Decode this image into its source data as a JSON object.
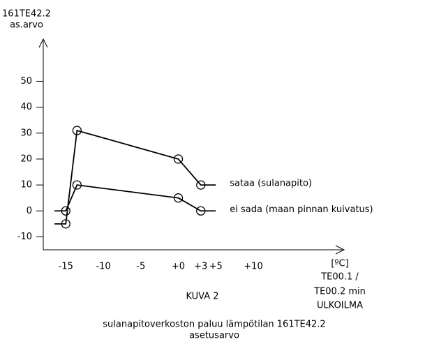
{
  "chart_data": {
    "type": "line",
    "y_label": [
      "161TE42.2",
      "as.arvo"
    ],
    "x_label": [
      "[ºC]",
      "TE00.1 /",
      "TE00.2 min",
      "ULKOILMA"
    ],
    "caption": "KUVA 2",
    "subcaption": [
      "sulanapitoverkoston paluu lämpötilan 161TE42.2",
      "asetusarvo"
    ],
    "x": [
      -16.5,
      -15,
      -13.5,
      0,
      3,
      5
    ],
    "series": [
      {
        "name": "sataa (sulanapito)",
        "color": "#000000",
        "values": [
          -5,
          -5,
          31,
          20,
          10,
          10
        ]
      },
      {
        "name": "ei sada (maan pinnan kuivatus)",
        "color": "#000000",
        "values": [
          0,
          0,
          10,
          5,
          0,
          0
        ]
      }
    ],
    "xlim": [
      -18,
      22
    ],
    "ylim": [
      -15,
      66
    ],
    "xticks": [
      -15,
      -10,
      -5,
      {
        "value": 0,
        "label": "+0"
      },
      {
        "value": 3,
        "label": "+3"
      },
      {
        "value": 5,
        "label": "+5"
      },
      {
        "value": 10,
        "label": "+10"
      }
    ],
    "yticks": [
      -10,
      0,
      10,
      20,
      30,
      40,
      50
    ]
  }
}
